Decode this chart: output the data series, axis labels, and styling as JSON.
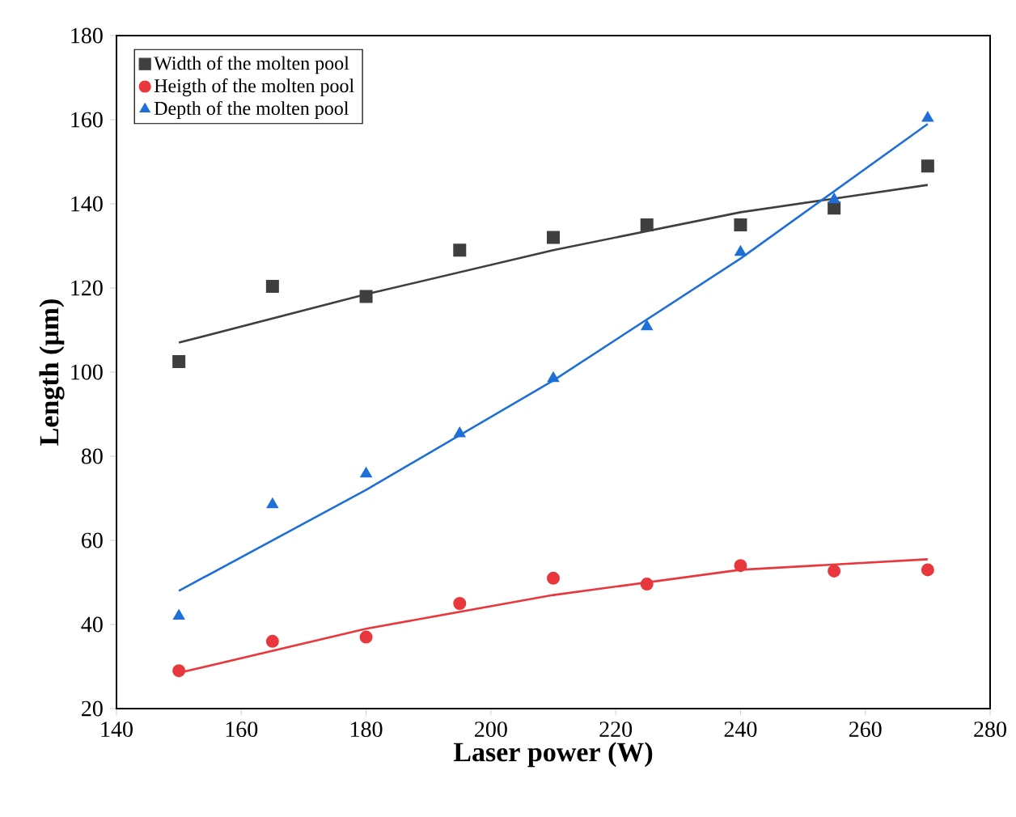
{
  "chart_data": {
    "type": "scatter",
    "xlabel": "Laser power (W)",
    "ylabel": "Length (μm)",
    "xlim": [
      140,
      280
    ],
    "ylim": [
      20,
      180
    ],
    "xticks": [
      140,
      160,
      180,
      200,
      220,
      240,
      260,
      280
    ],
    "yticks": [
      20,
      40,
      60,
      80,
      100,
      120,
      140,
      160,
      180
    ],
    "legend": "top left",
    "grid": false,
    "x": [
      150,
      165,
      180,
      195,
      210,
      225,
      240,
      255,
      270
    ],
    "series": [
      {
        "name": "Width of the molten pool",
        "marker": "square",
        "color": "#3f3f3f",
        "values": [
          102.5,
          120.4,
          118,
          129,
          132,
          135,
          135,
          139,
          149
        ]
      },
      {
        "name": "Heigth of the molten pool",
        "marker": "circle",
        "color": "#e8383d",
        "values": [
          29,
          36,
          37,
          45,
          51,
          49.6,
          54,
          52.7,
          53
        ]
      },
      {
        "name": "Depth of the molten pool",
        "marker": "triangle",
        "color": "#1f6fd8",
        "values": [
          42,
          68.5,
          75.8,
          85.4,
          98.5,
          110.8,
          128.5,
          141,
          160.4
        ]
      },
      {
        "type": "line",
        "marker": "none",
        "color": "#3f3f3f",
        "x": [
          150,
          180,
          210,
          240,
          270
        ],
        "values": [
          107,
          118.5,
          129,
          138,
          144.5
        ]
      },
      {
        "type": "line",
        "marker": "none",
        "color": "#e8383d",
        "x": [
          150,
          180,
          210,
          240,
          270
        ],
        "values": [
          28.5,
          39,
          47,
          53,
          55.5
        ]
      },
      {
        "type": "line",
        "marker": "none",
        "color": "#1f6fd8",
        "x": [
          150,
          180,
          210,
          240,
          270
        ],
        "values": [
          48,
          72,
          98,
          127,
          159
        ]
      }
    ]
  }
}
